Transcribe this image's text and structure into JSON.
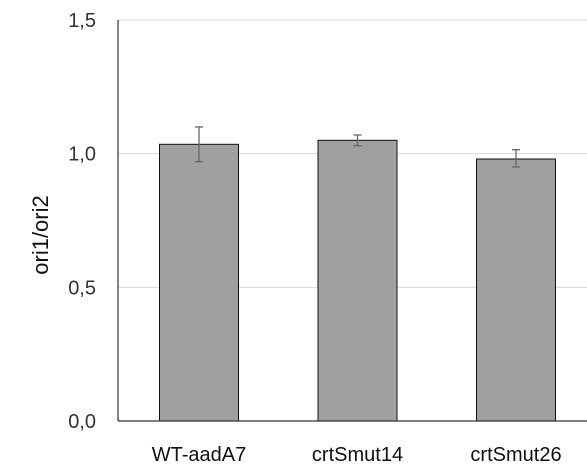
{
  "chart_data": {
    "type": "bar",
    "title": "",
    "xlabel": "",
    "ylabel": "ori1/ori2",
    "categories": [
      "WT-aadA7",
      "crtSmut14",
      "crtSmut26"
    ],
    "values": [
      1.035,
      1.05,
      0.98
    ],
    "error_low": [
      0.97,
      1.03,
      0.95
    ],
    "error_high": [
      1.1,
      1.07,
      1.015
    ],
    "ylim": [
      0,
      1.5
    ],
    "yticks": [
      "0,0",
      "0,5",
      "1,0",
      "1,5"
    ],
    "ytick_values": [
      0,
      0.5,
      1.0,
      1.5
    ],
    "grid": true,
    "legend": "none",
    "bar_color": "#a0a0a0"
  }
}
